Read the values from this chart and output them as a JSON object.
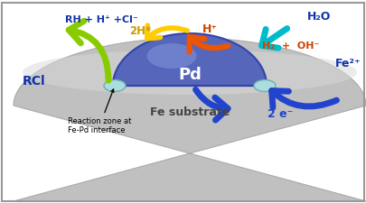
{
  "background_color": "#ffffff",
  "border_color": "#999999",
  "pd_label": "Pd",
  "fe_label": "Fe substrate",
  "rcl_label": "RCl",
  "rh_label": "RH + H⁺ +Cl⁻",
  "h2o_label": "H₂O",
  "h2_oh_label": "H₂  +  OH⁻",
  "hplus_label": "H⁺",
  "twoh_label": "2H*",
  "fe2plus_label": "Fe²⁺",
  "twoe_label": "2 e⁻",
  "reaction_zone_label": "Reaction zone at\nFe-Pd interface",
  "green_arrow_color": "#88cc00",
  "orange_arrow_color": "#ee5500",
  "yellow_arrow_color": "#ffcc00",
  "blue_arrow_color": "#2244cc",
  "cyan_arrow_color": "#00bbcc",
  "text_blue": "#1133aa",
  "text_orange": "#cc4400"
}
